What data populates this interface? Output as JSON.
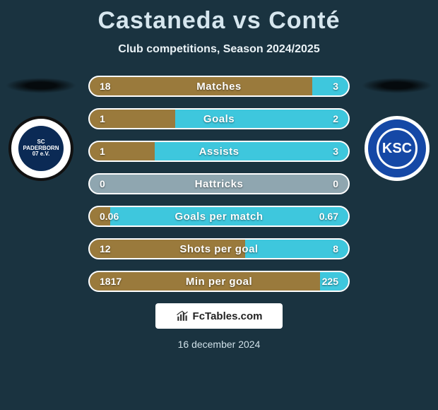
{
  "title": {
    "player1": "Castaneda",
    "vs": "vs",
    "player2": "Conté"
  },
  "subtitle": "Club competitions, Season 2024/2025",
  "colors": {
    "left_accent": "#9a7a3c",
    "right_accent": "#3ec7dd",
    "bar_bg": "#8fa6b0",
    "page_bg": "#1a3340"
  },
  "clubs": {
    "left": {
      "abbr": "SC",
      "name": "PADERBORN",
      "sub": "07 e.V."
    },
    "right": {
      "abbr": "KSC"
    }
  },
  "stats": [
    {
      "label": "Matches",
      "left_val": "18",
      "right_val": "3",
      "left_pct": 86,
      "right_pct": 14
    },
    {
      "label": "Goals",
      "left_val": "1",
      "right_val": "2",
      "left_pct": 33,
      "right_pct": 67
    },
    {
      "label": "Assists",
      "left_val": "1",
      "right_val": "3",
      "left_pct": 25,
      "right_pct": 75
    },
    {
      "label": "Hattricks",
      "left_val": "0",
      "right_val": "0",
      "left_pct": 0,
      "right_pct": 0
    },
    {
      "label": "Goals per match",
      "left_val": "0.06",
      "right_val": "0.67",
      "left_pct": 8,
      "right_pct": 92
    },
    {
      "label": "Shots per goal",
      "left_val": "12",
      "right_val": "8",
      "left_pct": 60,
      "right_pct": 40
    },
    {
      "label": "Min per goal",
      "left_val": "1817",
      "right_val": "225",
      "left_pct": 89,
      "right_pct": 11
    }
  ],
  "footer": {
    "brand": "FcTables.com",
    "date": "16 december 2024"
  }
}
